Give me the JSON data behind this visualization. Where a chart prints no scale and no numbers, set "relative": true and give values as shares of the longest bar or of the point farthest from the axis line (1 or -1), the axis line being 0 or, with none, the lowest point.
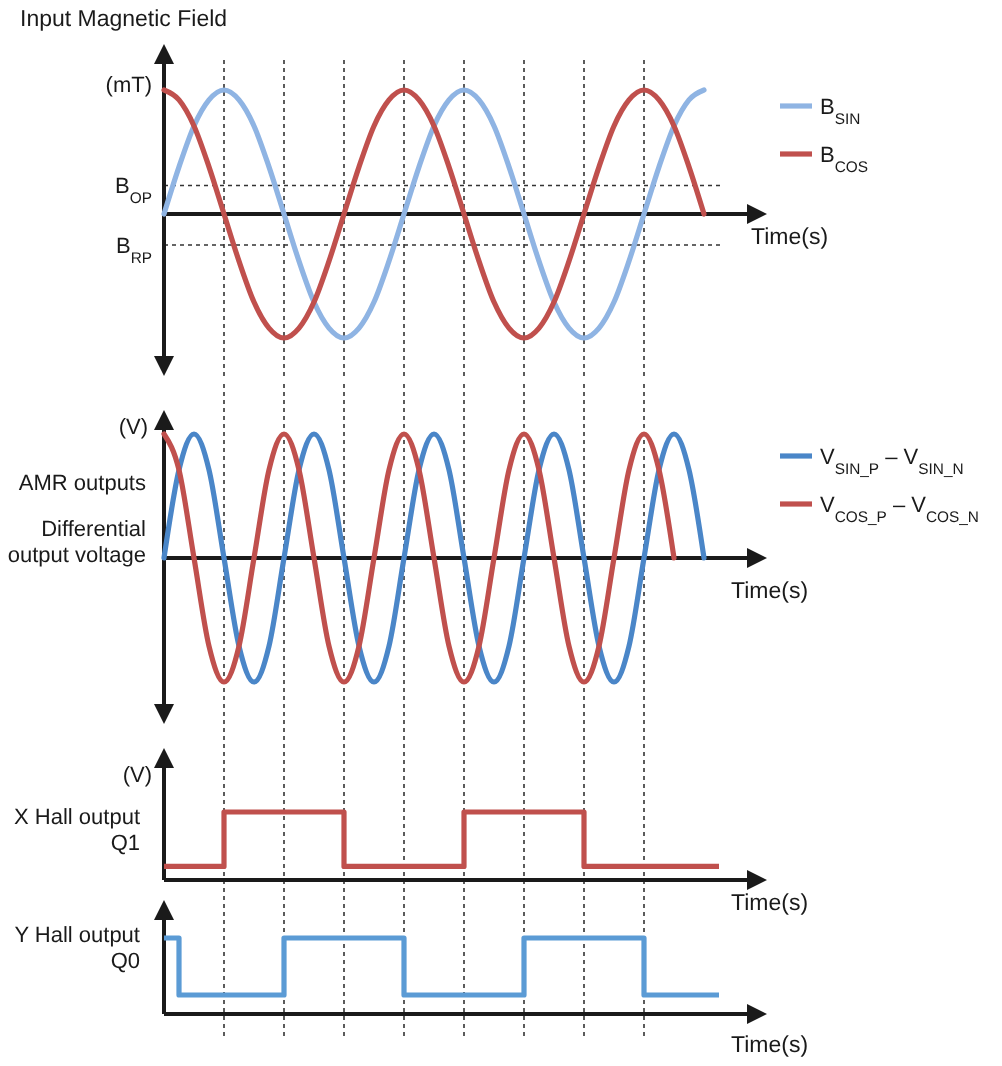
{
  "chart_data": [
    {
      "type": "line",
      "title": "Input Magnetic Field",
      "ylabel": "(mT)",
      "xlabel": "Time(s)",
      "relative": true,
      "legend": "right",
      "marker": "none",
      "categories": [
        null,
        null,
        null,
        null,
        null,
        null,
        null,
        null,
        null,
        null,
        null,
        null,
        null,
        null,
        null,
        null,
        null,
        null,
        null,
        null,
        null,
        null,
        null,
        null,
        null,
        null,
        null,
        null,
        null,
        null,
        null,
        null,
        null,
        null,
        null,
        null,
        null,
        null
      ],
      "series": [
        {
          "name": "B$_{SIN}$",
          "color": "#8fb4e3",
          "values": [
            0,
            0.38,
            0.71,
            0.92,
            1,
            0.92,
            0.71,
            0.38,
            0,
            -0.38,
            -0.71,
            -0.92,
            -1,
            -0.92,
            -0.71,
            -0.38,
            0,
            0.38,
            0.71,
            0.92,
            1,
            0.92,
            0.71,
            0.38,
            0,
            -0.38,
            -0.71,
            -0.92,
            -1,
            -0.92,
            -0.71,
            -0.38,
            0,
            0.38,
            0.71,
            0.92,
            1,
            null
          ]
        },
        {
          "name": "B$_{COS}$",
          "color": "#c0504d",
          "values": [
            1,
            0.92,
            0.71,
            0.38,
            0,
            -0.38,
            -0.71,
            -0.92,
            -1,
            -0.92,
            -0.71,
            -0.38,
            0,
            0.38,
            0.71,
            0.92,
            1,
            0.92,
            0.71,
            0.38,
            0,
            -0.38,
            -0.71,
            -0.92,
            -1,
            -0.92,
            -0.71,
            -0.38,
            0,
            0.38,
            0.71,
            0.92,
            1,
            0.92,
            0.71,
            0.38,
            0,
            null
          ]
        }
      ],
      "ref_lines": [
        {
          "axis": "y",
          "value": 0.23,
          "label": "B$_{OP}$"
        },
        {
          "axis": "y",
          "value": -0.25,
          "label": "B$_{RP}$"
        }
      ],
      "grid": "x"
    },
    {
      "type": "line",
      "ylabel": "(V)",
      "xlabel": "Time(s)",
      "relative": true,
      "legend": "right",
      "marker": "none",
      "annotations": [
        "AMR outputs",
        "Differential output voltage"
      ],
      "categories": [
        null,
        null,
        null,
        null,
        null,
        null,
        null,
        null,
        null,
        null,
        null,
        null,
        null,
        null,
        null,
        null,
        null,
        null,
        null,
        null,
        null,
        null,
        null,
        null,
        null,
        null,
        null,
        null,
        null,
        null,
        null,
        null,
        null,
        null,
        null,
        null,
        null,
        null
      ],
      "series": [
        {
          "name": "V$_{SIN_P}$ – V$_{SIN_N}$",
          "color": "#4a86c8",
          "values": [
            0,
            0.71,
            1,
            0.71,
            0,
            -0.71,
            -1,
            -0.71,
            0,
            0.71,
            1,
            0.71,
            0,
            -0.71,
            -1,
            -0.71,
            0,
            0.71,
            1,
            0.71,
            0,
            -0.71,
            -1,
            -0.71,
            0,
            0.71,
            1,
            0.71,
            0,
            -0.71,
            -1,
            -0.71,
            0,
            0.71,
            1,
            0.71,
            0,
            null
          ]
        },
        {
          "name": "V$_{COS_P}$ – V$_{COS_N}$",
          "color": "#c0504d",
          "values": [
            1,
            0.71,
            0,
            -0.71,
            -1,
            -0.71,
            0,
            0.71,
            1,
            0.71,
            0,
            -0.71,
            -1,
            -0.71,
            0,
            0.71,
            1,
            0.71,
            0,
            -0.71,
            -1,
            -0.71,
            0,
            0.71,
            1,
            0.71,
            0,
            -0.71,
            -1,
            -0.71,
            0,
            0.71,
            1,
            0.71,
            0,
            null,
            null,
            null
          ]
        }
      ],
      "grid": "x"
    },
    {
      "type": "step",
      "ylabel": "(V)",
      "xlabel": "Time(s)",
      "relative": true,
      "marker": "none",
      "annotations": [
        "X Hall output Q1"
      ],
      "categories": [
        null,
        null,
        null,
        null,
        null,
        null,
        null,
        null,
        null,
        null,
        null,
        null,
        null,
        null,
        null,
        null,
        null,
        null,
        null,
        null,
        null,
        null,
        null,
        null,
        null,
        null,
        null,
        null,
        null,
        null,
        null,
        null,
        null,
        null,
        null,
        null,
        null,
        null
      ],
      "series": [
        {
          "color": "#c0504d",
          "values": [
            0.2,
            0.2,
            0.2,
            0.2,
            1,
            1,
            1,
            1,
            1,
            1,
            1,
            1,
            0.2,
            0.2,
            0.2,
            0.2,
            0.2,
            0.2,
            0.2,
            0.2,
            1,
            1,
            1,
            1,
            1,
            1,
            1,
            1,
            0.2,
            0.2,
            0.2,
            0.2,
            0.2,
            0.2,
            0.2,
            0.2,
            0.2,
            0.2
          ]
        }
      ],
      "grid": "x"
    },
    {
      "type": "step",
      "xlabel": "Time(s)",
      "relative": true,
      "marker": "none",
      "annotations": [
        "Y Hall output Q0"
      ],
      "categories": [
        null,
        null,
        null,
        null,
        null,
        null,
        null,
        null,
        null,
        null,
        null,
        null,
        null,
        null,
        null,
        null,
        null,
        null,
        null,
        null,
        null,
        null,
        null,
        null,
        null,
        null,
        null,
        null,
        null,
        null,
        null,
        null,
        null,
        null,
        null,
        null,
        null,
        null
      ],
      "series": [
        {
          "color": "#5b9bd5",
          "values": [
            1,
            0.25,
            0.25,
            0.25,
            0.25,
            0.25,
            0.25,
            0.25,
            1,
            1,
            1,
            1,
            1,
            1,
            1,
            1,
            0.25,
            0.25,
            0.25,
            0.25,
            0.25,
            0.25,
            0.25,
            0.25,
            1,
            1,
            1,
            1,
            1,
            1,
            1,
            1,
            0.25,
            0.25,
            0.25,
            0.25,
            0.25,
            0.25
          ]
        }
      ],
      "grid": "x"
    }
  ]
}
